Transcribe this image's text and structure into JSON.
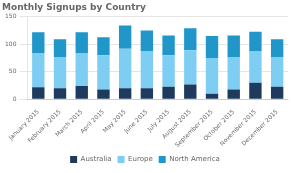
{
  "chart_data": {
    "type": "bar",
    "title": "Monthly Signups by Country",
    "categories": [
      "January 2015",
      "February 2015",
      "March 2015",
      "April 2015",
      "May 2015",
      "June 2015",
      "July 2015",
      "August 2015",
      "September 2015",
      "October 2015",
      "November 2015",
      "December 2015"
    ],
    "series": [
      {
        "name": "Australia",
        "color": "#1e3a5f",
        "values": [
          22,
          20,
          24,
          18,
          20,
          20,
          23,
          27,
          10,
          18,
          30,
          23
        ]
      },
      {
        "name": "Europe",
        "color": "#7ecef4",
        "values": [
          62,
          56,
          60,
          62,
          72,
          67,
          57,
          62,
          65,
          58,
          58,
          54
        ]
      },
      {
        "name": "North America",
        "color": "#2196c8",
        "values": [
          38,
          33,
          38,
          33,
          42,
          38,
          36,
          40,
          40,
          40,
          35,
          32
        ]
      }
    ],
    "stacked": true,
    "ylim": [
      0,
      150
    ],
    "yticks": [
      0,
      50,
      100,
      150
    ],
    "grid": true,
    "legend": "bottom"
  }
}
